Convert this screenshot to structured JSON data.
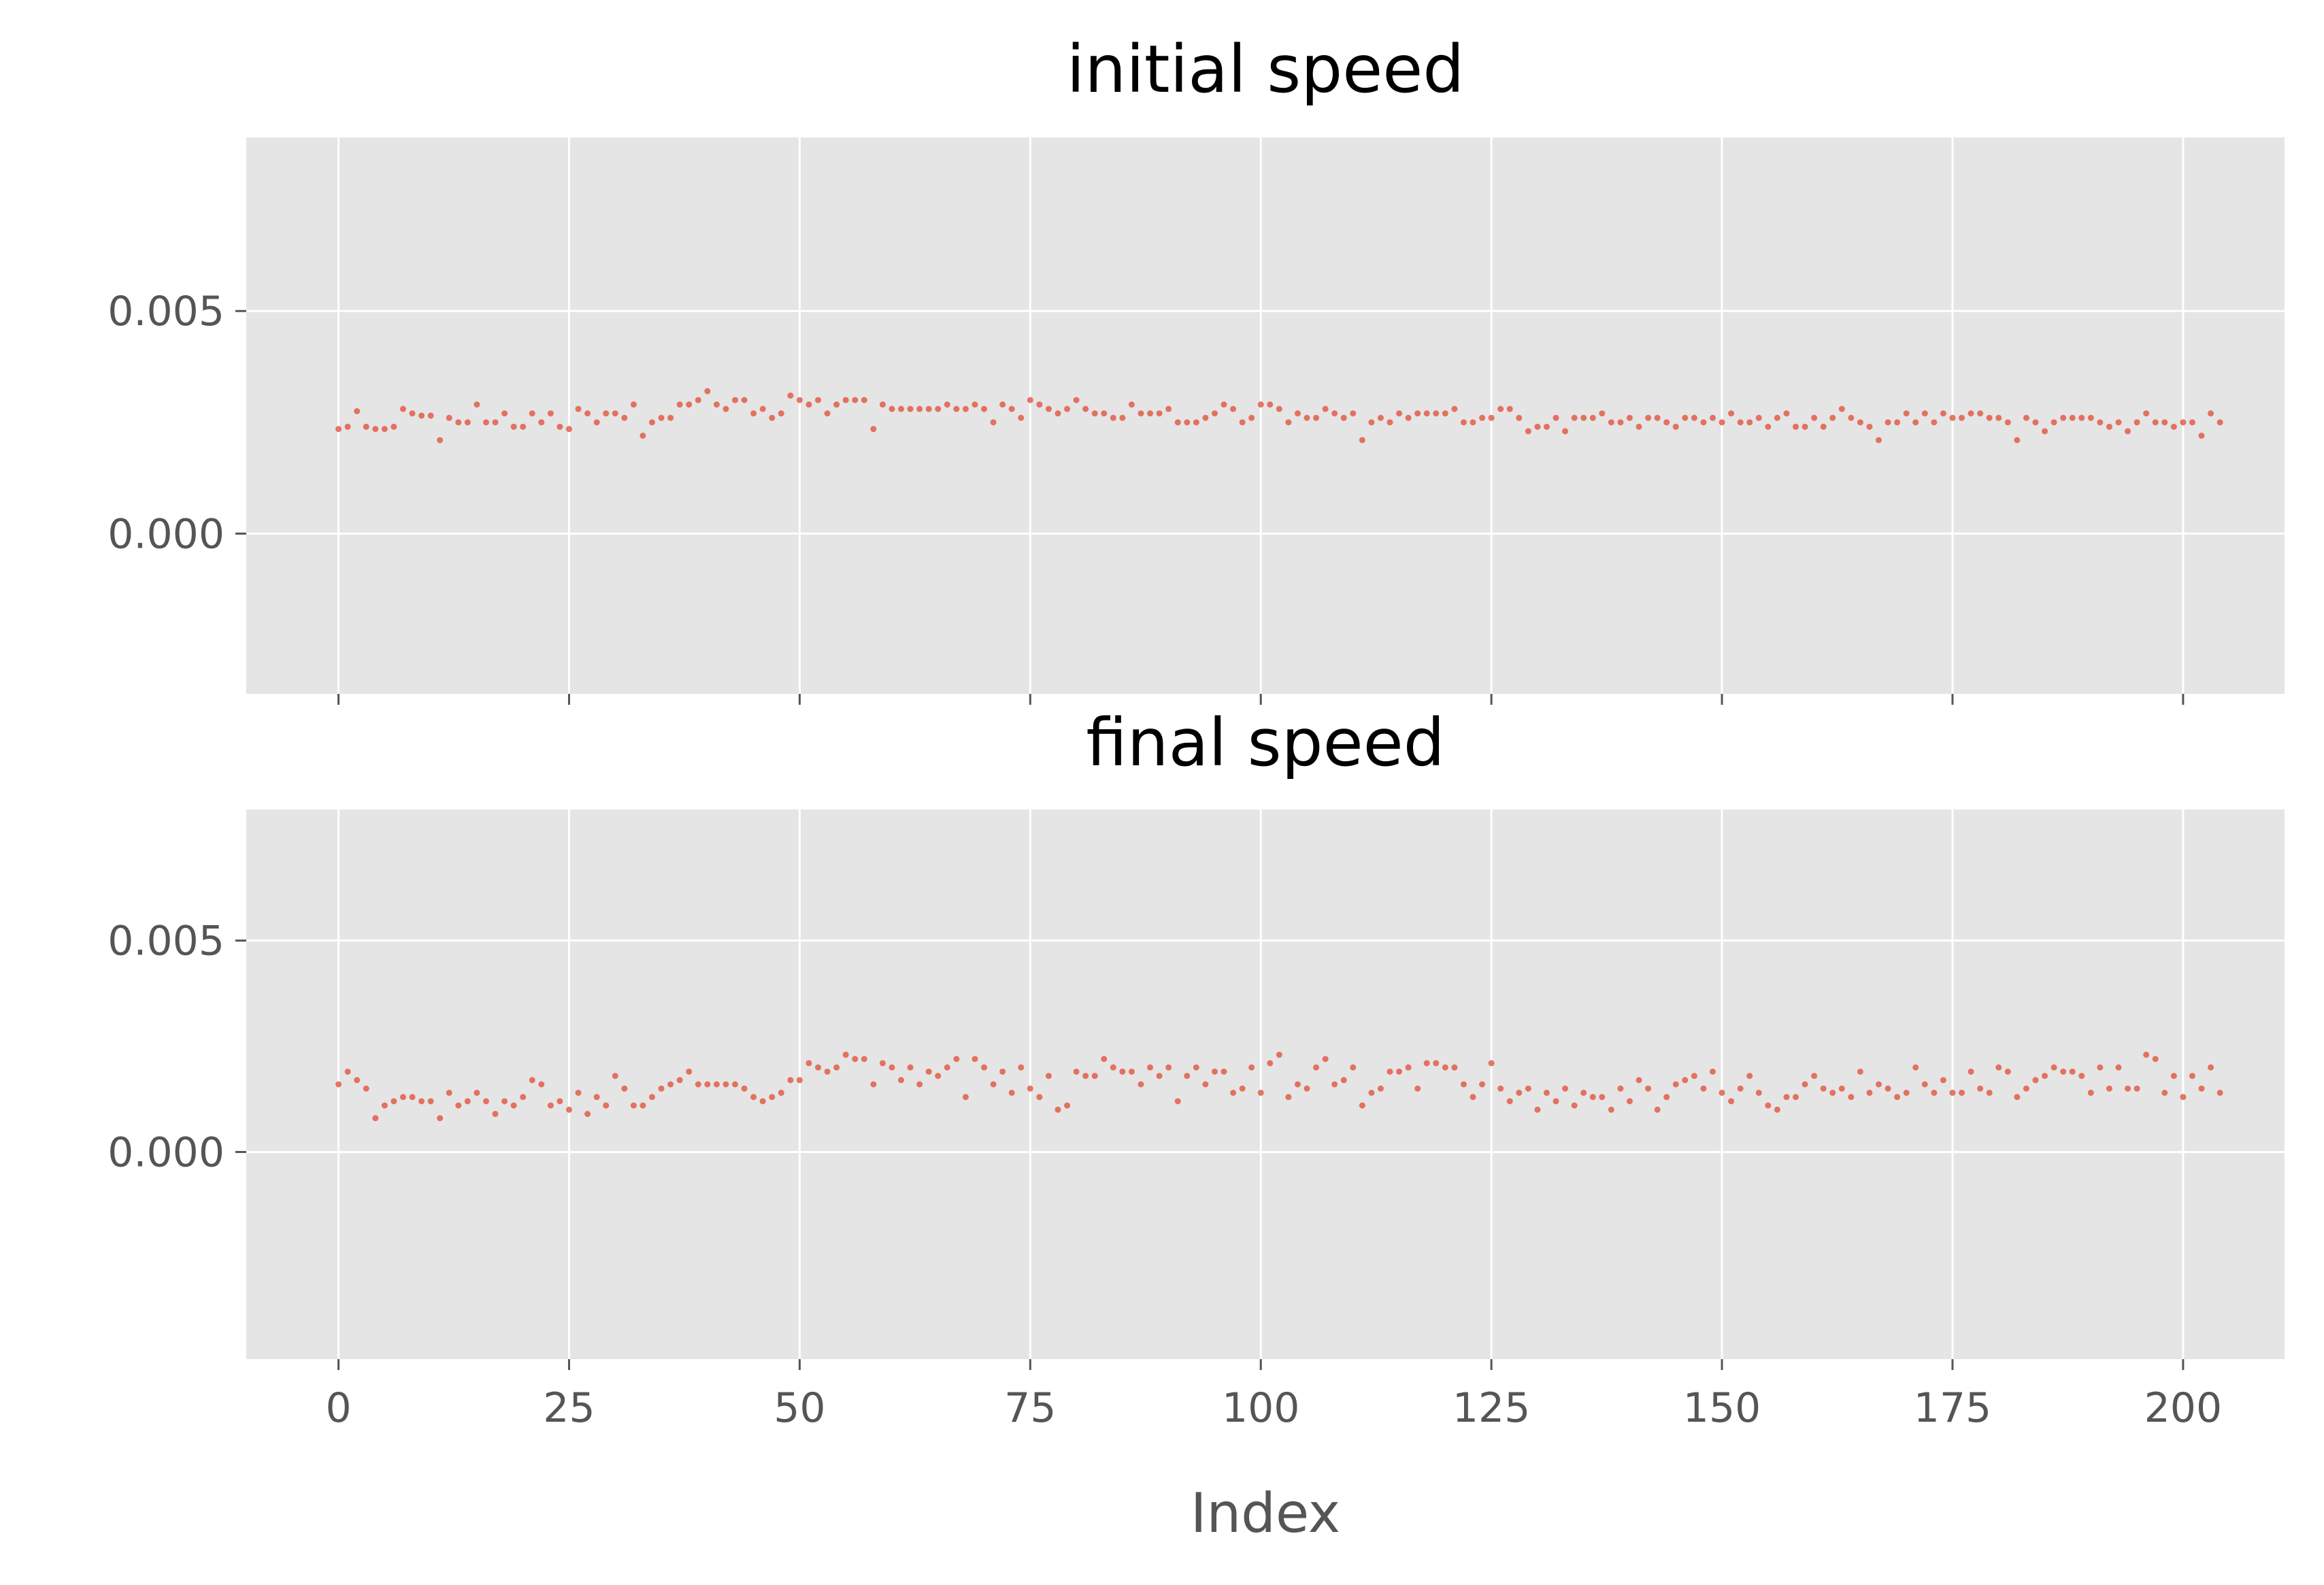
{
  "colors": {
    "point": "#e24a33",
    "panel_bg": "#e5e5e5",
    "grid": "#ffffff",
    "tick_text": "#555555"
  },
  "chart_data": [
    {
      "type": "scatter",
      "title": "initial speed",
      "xlabel": "",
      "ylabel": "",
      "xlim": [
        -10,
        211
      ],
      "ylim": [
        -0.0036,
        0.0089
      ],
      "x_ticks": [
        0,
        25,
        50,
        75,
        100,
        125,
        150,
        175,
        200
      ],
      "x_tick_labels": [
        "",
        "",
        "",
        "",
        "",
        "",
        "",
        "",
        ""
      ],
      "y_ticks": [
        0.0,
        0.005
      ],
      "y_tick_labels": [
        "0.000",
        "0.005"
      ],
      "grid": true,
      "x_start": 0,
      "values": [
        0.00235,
        0.0024,
        0.00275,
        0.0024,
        0.00235,
        0.00235,
        0.0024,
        0.0028,
        0.0027,
        0.00265,
        0.00265,
        0.0021,
        0.0026,
        0.0025,
        0.0025,
        0.0029,
        0.0025,
        0.0025,
        0.0027,
        0.0024,
        0.0024,
        0.0027,
        0.0025,
        0.0027,
        0.0024,
        0.00235,
        0.0028,
        0.0027,
        0.0025,
        0.0027,
        0.0027,
        0.0026,
        0.0029,
        0.0022,
        0.0025,
        0.0026,
        0.0026,
        0.0029,
        0.0029,
        0.003,
        0.0032,
        0.0029,
        0.0028,
        0.003,
        0.003,
        0.0027,
        0.0028,
        0.0026,
        0.0027,
        0.0031,
        0.003,
        0.0029,
        0.003,
        0.0027,
        0.0029,
        0.003,
        0.003,
        0.003,
        0.00235,
        0.0029,
        0.0028,
        0.0028,
        0.0028,
        0.0028,
        0.0028,
        0.0028,
        0.0029,
        0.0028,
        0.0028,
        0.0029,
        0.0028,
        0.0025,
        0.0029,
        0.0028,
        0.0026,
        0.003,
        0.0029,
        0.0028,
        0.0027,
        0.0028,
        0.003,
        0.0028,
        0.0027,
        0.0027,
        0.0026,
        0.0026,
        0.0029,
        0.0027,
        0.0027,
        0.0027,
        0.0028,
        0.0025,
        0.0025,
        0.0025,
        0.0026,
        0.0027,
        0.0029,
        0.0028,
        0.0025,
        0.0026,
        0.0029,
        0.0029,
        0.0028,
        0.0025,
        0.0027,
        0.0026,
        0.0026,
        0.0028,
        0.0027,
        0.0026,
        0.0027,
        0.0021,
        0.0025,
        0.0026,
        0.0025,
        0.0027,
        0.0026,
        0.0027,
        0.0027,
        0.0027,
        0.0027,
        0.0028,
        0.0025,
        0.0025,
        0.0026,
        0.0026,
        0.0028,
        0.0028,
        0.0026,
        0.0023,
        0.0024,
        0.0024,
        0.0026,
        0.0023,
        0.0026,
        0.0026,
        0.0026,
        0.0027,
        0.0025,
        0.0025,
        0.0026,
        0.0024,
        0.0026,
        0.0026,
        0.0025,
        0.0024,
        0.0026,
        0.0026,
        0.0025,
        0.0026,
        0.0025,
        0.0027,
        0.0025,
        0.0025,
        0.0026,
        0.0024,
        0.0026,
        0.0027,
        0.0024,
        0.0024,
        0.0026,
        0.0024,
        0.0026,
        0.0028,
        0.0026,
        0.0025,
        0.0024,
        0.0021,
        0.0025,
        0.0025,
        0.0027,
        0.0025,
        0.0027,
        0.0025,
        0.0027,
        0.0026,
        0.0026,
        0.0027,
        0.0027,
        0.0026,
        0.0026,
        0.0025,
        0.0021,
        0.0026,
        0.0025,
        0.0023,
        0.0025,
        0.0026,
        0.0026,
        0.0026,
        0.0026,
        0.0025,
        0.0024,
        0.0025,
        0.0023,
        0.0025,
        0.0027,
        0.0025,
        0.0025,
        0.0024,
        0.0025,
        0.0025,
        0.0022,
        0.0027,
        0.0025
      ]
    },
    {
      "type": "scatter",
      "title": "final speed",
      "xlabel": "Index",
      "ylabel": "",
      "xlim": [
        -10,
        211
      ],
      "ylim": [
        -0.0049,
        0.0081
      ],
      "x_ticks": [
        0,
        25,
        50,
        75,
        100,
        125,
        150,
        175,
        200
      ],
      "x_tick_labels": [
        "0",
        "25",
        "50",
        "75",
        "100",
        "125",
        "150",
        "175",
        "200"
      ],
      "y_ticks": [
        0.0,
        0.005
      ],
      "y_tick_labels": [
        "0.000",
        "0.005"
      ],
      "grid": true,
      "x_start": 0,
      "values": [
        0.0016,
        0.0019,
        0.0017,
        0.0015,
        0.0008,
        0.0011,
        0.0012,
        0.0013,
        0.0013,
        0.0012,
        0.0012,
        0.0008,
        0.0014,
        0.0011,
        0.0012,
        0.0014,
        0.0012,
        0.0009,
        0.0012,
        0.0011,
        0.0013,
        0.0017,
        0.0016,
        0.0011,
        0.0012,
        0.001,
        0.0014,
        0.0009,
        0.0013,
        0.0011,
        0.0018,
        0.0015,
        0.0011,
        0.0011,
        0.0013,
        0.0015,
        0.0016,
        0.0017,
        0.0019,
        0.0016,
        0.0016,
        0.0016,
        0.0016,
        0.0016,
        0.0015,
        0.0013,
        0.0012,
        0.0013,
        0.0014,
        0.0017,
        0.0017,
        0.0021,
        0.002,
        0.0019,
        0.002,
        0.0023,
        0.0022,
        0.0022,
        0.0016,
        0.0021,
        0.002,
        0.0017,
        0.002,
        0.0016,
        0.0019,
        0.0018,
        0.002,
        0.0022,
        0.0013,
        0.0022,
        0.002,
        0.0016,
        0.0019,
        0.0014,
        0.002,
        0.0015,
        0.0013,
        0.0018,
        0.001,
        0.0011,
        0.0019,
        0.0018,
        0.0018,
        0.0022,
        0.002,
        0.0019,
        0.0019,
        0.0016,
        0.002,
        0.0018,
        0.002,
        0.0012,
        0.0018,
        0.002,
        0.0016,
        0.0019,
        0.0019,
        0.0014,
        0.0015,
        0.002,
        0.0014,
        0.0021,
        0.0023,
        0.0013,
        0.0016,
        0.0015,
        0.002,
        0.0022,
        0.0016,
        0.0017,
        0.002,
        0.0011,
        0.0014,
        0.0015,
        0.0019,
        0.0019,
        0.002,
        0.0015,
        0.0021,
        0.0021,
        0.002,
        0.002,
        0.0016,
        0.0013,
        0.0016,
        0.0021,
        0.0015,
        0.0012,
        0.0014,
        0.0015,
        0.001,
        0.0014,
        0.0012,
        0.0015,
        0.0011,
        0.0014,
        0.0013,
        0.0013,
        0.001,
        0.0015,
        0.0012,
        0.0017,
        0.0015,
        0.001,
        0.0013,
        0.0016,
        0.0017,
        0.0018,
        0.0015,
        0.0019,
        0.0014,
        0.0012,
        0.0015,
        0.0018,
        0.0014,
        0.0011,
        0.001,
        0.0013,
        0.0013,
        0.0016,
        0.0018,
        0.0015,
        0.0014,
        0.0015,
        0.0013,
        0.0019,
        0.0014,
        0.0016,
        0.0015,
        0.0013,
        0.0014,
        0.002,
        0.0016,
        0.0014,
        0.0017,
        0.0014,
        0.0014,
        0.0019,
        0.0015,
        0.0014,
        0.002,
        0.0019,
        0.0013,
        0.0015,
        0.0017,
        0.0018,
        0.002,
        0.0019,
        0.0019,
        0.0018,
        0.0014,
        0.002,
        0.0015,
        0.002,
        0.0015,
        0.0015,
        0.0023,
        0.0022,
        0.0014,
        0.0018,
        0.0013,
        0.0018,
        0.0015,
        0.002,
        0.0014
      ]
    }
  ]
}
